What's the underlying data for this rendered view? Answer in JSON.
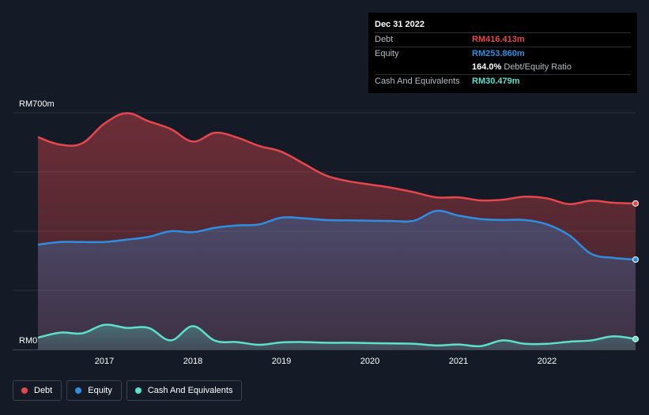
{
  "colors": {
    "background": "#151b26",
    "debt": "#e5474d",
    "equity": "#2e8fe0",
    "cash": "#5ce0cc",
    "grid": "#2a303b"
  },
  "tooltip": {
    "date": "Dec 31 2022",
    "debt_label": "Debt",
    "debt_value": "RM416.413m",
    "equity_label": "Equity",
    "equity_value": "RM253.860m",
    "ratio_value": "164.0%",
    "ratio_label": "Debt/Equity Ratio",
    "cash_label": "Cash And Equivalents",
    "cash_value": "RM30.479m"
  },
  "legend": [
    {
      "label": "Debt",
      "color": "#e5474d"
    },
    {
      "label": "Equity",
      "color": "#2e8fe0"
    },
    {
      "label": "Cash And Equivalents",
      "color": "#5ce0cc"
    }
  ],
  "chart_data": {
    "type": "area",
    "y_top_label": "RM700m",
    "y_bottom_label": "RM0",
    "ylim": [
      0,
      700
    ],
    "xlim": [
      2016.25,
      2023.0
    ],
    "x_ticks": [
      "2017",
      "2018",
      "2019",
      "2020",
      "2021",
      "2022"
    ],
    "x_tick_values": [
      2017,
      2018,
      2019,
      2020,
      2021,
      2022
    ],
    "grid": true,
    "legend_position": "bottom-left",
    "x": [
      2016.25,
      2016.5,
      2016.75,
      2017.0,
      2017.25,
      2017.5,
      2017.75,
      2018.0,
      2018.25,
      2018.5,
      2018.75,
      2019.0,
      2019.25,
      2019.5,
      2019.75,
      2020.0,
      2020.25,
      2020.5,
      2020.75,
      2021.0,
      2021.25,
      2021.5,
      2021.75,
      2022.0,
      2022.25,
      2022.5,
      2022.75,
      2023.0
    ],
    "series": [
      {
        "name": "Debt",
        "values": [
          628,
          606,
          610,
          668,
          699,
          675,
          652,
          615,
          641,
          627,
          602,
          585,
          550,
          515,
          498,
          488,
          478,
          465,
          450,
          450,
          441,
          443,
          452,
          447,
          430,
          440,
          434,
          432
        ]
      },
      {
        "name": "Equity",
        "values": [
          310,
          318,
          318,
          318,
          325,
          333,
          350,
          347,
          360,
          367,
          370,
          390,
          388,
          383,
          382,
          381,
          380,
          381,
          410,
          396,
          386,
          383,
          383,
          370,
          338,
          283,
          271,
          266
        ]
      },
      {
        "name": "Cash And Equivalents",
        "values": [
          35,
          50,
          48,
          73,
          64,
          64,
          27,
          69,
          26,
          22,
          14,
          21,
          22,
          20,
          20,
          19,
          18,
          17,
          12,
          15,
          10,
          27,
          17,
          17,
          23,
          27,
          39,
          31
        ]
      }
    ]
  }
}
